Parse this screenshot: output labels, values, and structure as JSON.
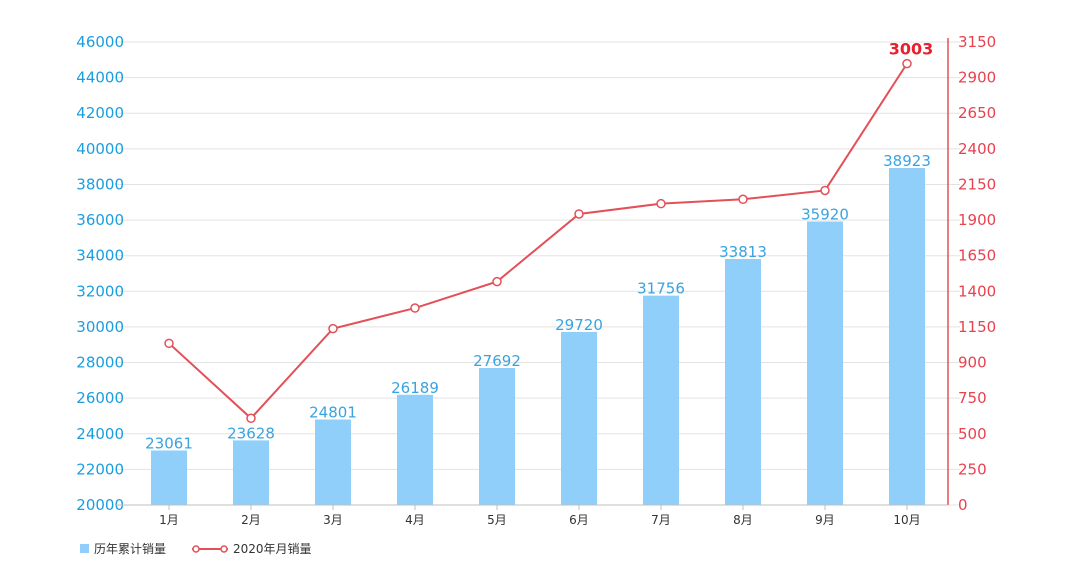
{
  "chart_data": {
    "type": "bar+line",
    "categories": [
      "1月",
      "2月",
      "3月",
      "4月",
      "5月",
      "6月",
      "7月",
      "8月",
      "9月",
      "10月"
    ],
    "series": [
      {
        "name": "历年累计销量",
        "kind": "bar",
        "axis": "left",
        "color": "#8fcffa",
        "values": [
          23061,
          23628,
          24801,
          26189,
          27692,
          29720,
          31756,
          33813,
          35920,
          38923
        ],
        "data_labels": [
          "23061",
          "23628",
          "24801",
          "26189",
          "27692",
          "29720",
          "31756",
          "33813",
          "35920",
          "38923"
        ]
      },
      {
        "name": "2020年月销量",
        "kind": "line",
        "axis": "right",
        "color": "#e35058",
        "values": [
          1100,
          590,
          1200,
          1340,
          1520,
          1980,
          2050,
          2080,
          2140,
          3003
        ],
        "annotation": {
          "index": 9,
          "text": "3003"
        }
      }
    ],
    "y_left": {
      "min": 20000,
      "max": 46000,
      "ticks": [
        "20000",
        "22000",
        "24000",
        "26000",
        "28000",
        "30000",
        "32000",
        "34000",
        "36000",
        "38000",
        "40000",
        "42000",
        "44000",
        "46000"
      ],
      "color": "#1a9ee0"
    },
    "y_right": {
      "min": 0,
      "max": 3150,
      "ticks": [
        "0",
        "250",
        "500",
        "750",
        "900",
        "1150",
        "1400",
        "1650",
        "1900",
        "2150",
        "2400",
        "2650",
        "2900",
        "3150"
      ],
      "color": "#e8424f"
    },
    "grid": true,
    "legend": {
      "position": "bottom-left"
    }
  }
}
